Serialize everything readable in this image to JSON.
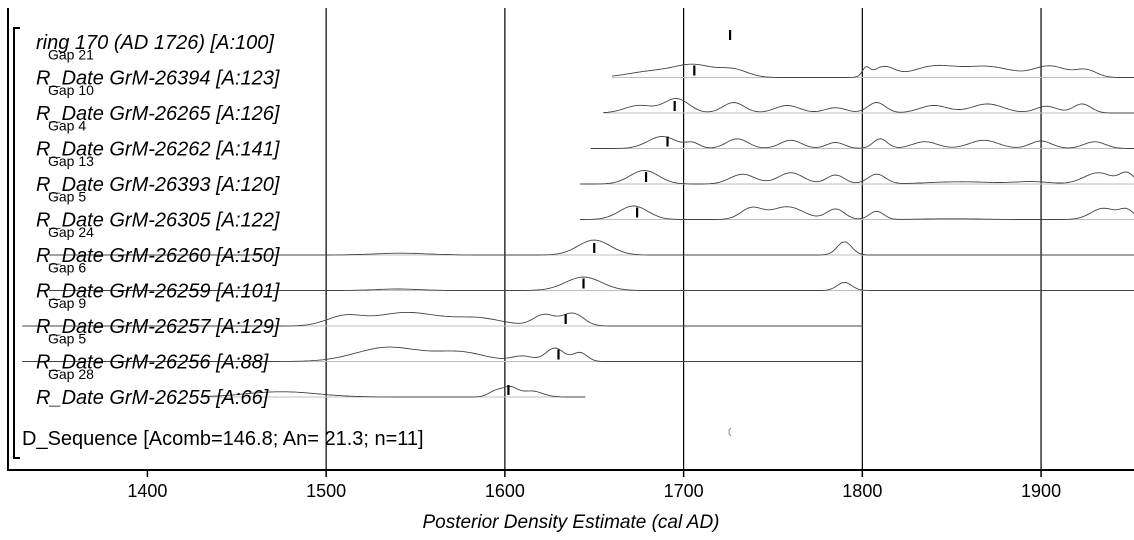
{
  "chart_data": {
    "type": "line",
    "xlabel": "Posterior Density Estimate (cal AD)",
    "ylabel": "",
    "xlim": [
      1322,
      1952
    ],
    "x_ticks": [
      1400,
      1500,
      1600,
      1700,
      1800,
      1900
    ],
    "x_tick_labels": [
      "1400",
      "1500",
      "1600",
      "1700",
      "1800",
      "1900"
    ],
    "grid_x": [
      1500,
      1600,
      1700,
      1800,
      1900
    ],
    "rows": [
      {
        "label": "ring 170 (AD 1726) [A:100]",
        "italic": true,
        "gap": "",
        "median": 1726,
        "baseline": null,
        "peaks": []
      },
      {
        "label": "R_Date GrM-26394 [A:123]",
        "italic": true,
        "gap": "Gap 21",
        "median": 1706,
        "baseline": [
          1660,
          1952
        ],
        "peaks": [
          [
            1682,
            13,
            0.4
          ],
          [
            1706,
            11,
            0.8
          ],
          [
            1728,
            8,
            0.5
          ],
          [
            1802,
            2,
            0.55
          ],
          [
            1812,
            6,
            0.7
          ],
          [
            1840,
            12,
            0.72
          ],
          [
            1870,
            14,
            0.72
          ],
          [
            1905,
            9,
            0.75
          ],
          [
            1925,
            6,
            0.5
          ]
        ]
      },
      {
        "label": "R_Date GrM-26265 [A:126]",
        "italic": true,
        "gap": "Gap 10",
        "median": 1695,
        "baseline": [
          1655,
          1952
        ],
        "peaks": [
          [
            1675,
            8,
            0.5
          ],
          [
            1696,
            7,
            0.95
          ],
          [
            1728,
            6,
            0.7
          ],
          [
            1758,
            7,
            0.5
          ],
          [
            1785,
            6,
            0.35
          ],
          [
            1808,
            5,
            0.7
          ],
          [
            1840,
            8,
            0.5
          ],
          [
            1870,
            9,
            0.6
          ],
          [
            1903,
            6,
            0.45
          ],
          [
            1923,
            5,
            0.6
          ]
        ]
      },
      {
        "label": "R_Date GrM-26262 [A:141]",
        "italic": true,
        "gap": "Gap 4",
        "median": 1691,
        "baseline": [
          1648,
          1952
        ],
        "peaks": [
          [
            1688,
            8,
            0.8
          ],
          [
            1705,
            4,
            0.35
          ],
          [
            1730,
            6,
            0.65
          ],
          [
            1760,
            6,
            0.55
          ],
          [
            1785,
            5,
            0.4
          ],
          [
            1810,
            4,
            0.65
          ],
          [
            1835,
            7,
            0.45
          ],
          [
            1868,
            8,
            0.55
          ],
          [
            1900,
            6,
            0.5
          ],
          [
            1930,
            6,
            0.45
          ]
        ]
      },
      {
        "label": "R_Date GrM-26393 [A:120]",
        "italic": true,
        "gap": "Gap 13",
        "median": 1679,
        "baseline": [
          1642,
          1952
        ],
        "peaks": [
          [
            1678,
            8,
            0.9
          ],
          [
            1733,
            7,
            0.65
          ],
          [
            1760,
            7,
            0.75
          ],
          [
            1785,
            5,
            0.6
          ],
          [
            1808,
            5,
            0.65
          ],
          [
            1855,
            18,
            0.15
          ],
          [
            1895,
            10,
            0.15
          ],
          [
            1932,
            8,
            0.75
          ],
          [
            1948,
            4,
            0.7
          ]
        ]
      },
      {
        "label": "R_Date GrM-26305 [A:122]",
        "italic": true,
        "gap": "Gap 5",
        "median": 1674,
        "baseline": [
          1642,
          1952
        ],
        "peaks": [
          [
            1672,
            8,
            0.9
          ],
          [
            1738,
            6,
            0.75
          ],
          [
            1758,
            9,
            0.85
          ],
          [
            1785,
            5,
            0.7
          ],
          [
            1808,
            4,
            0.55
          ],
          [
            1850,
            15,
            0.05
          ],
          [
            1935,
            7,
            0.75
          ],
          [
            1948,
            4,
            0.6
          ]
        ]
      },
      {
        "label": "R_Date GrM-26260 [A:150]",
        "italic": true,
        "gap": "Gap 24",
        "median": 1650,
        "baseline": [
          1345,
          1952
        ],
        "peaks": [
          [
            1542,
            15,
            0.12
          ],
          [
            1650,
            9,
            1.0
          ],
          [
            1790,
            4,
            0.9
          ]
        ]
      },
      {
        "label": "R_Date GrM-26259 [A:101]",
        "italic": true,
        "gap": "Gap 6",
        "median": 1644,
        "baseline": [
          1345,
          1952
        ],
        "peaks": [
          [
            1540,
            12,
            0.1
          ],
          [
            1644,
            10,
            0.9
          ],
          [
            1790,
            4,
            0.55
          ]
        ]
      },
      {
        "label": "R_Date GrM-26257 [A:129]",
        "italic": true,
        "gap": "Gap 9",
        "median": 1634,
        "baseline": [
          1330,
          1800
        ],
        "peaks": [
          [
            1510,
            10,
            0.6
          ],
          [
            1545,
            18,
            0.9
          ],
          [
            1585,
            14,
            0.5
          ],
          [
            1622,
            6,
            0.75
          ],
          [
            1638,
            6,
            0.85
          ]
        ]
      },
      {
        "label": "R_Date GrM-26256 [A:88]",
        "italic": true,
        "gap": "Gap 5",
        "median": 1630,
        "baseline": [
          1330,
          1800
        ],
        "peaks": [
          [
            1535,
            18,
            0.95
          ],
          [
            1575,
            14,
            0.6
          ],
          [
            1610,
            6,
            0.35
          ],
          [
            1628,
            5,
            0.9
          ],
          [
            1642,
            4,
            0.6
          ]
        ]
      },
      {
        "label": "R_Date GrM-26255 [A:66]",
        "italic": true,
        "gap": "Gap 28",
        "median": 1602,
        "baseline": [
          1430,
          1645
        ],
        "peaks": [
          [
            1475,
            20,
            0.35
          ],
          [
            1595,
            4,
            0.4
          ],
          [
            1603,
            4,
            0.6
          ],
          [
            1615,
            6,
            0.4
          ]
        ]
      },
      {
        "label": "D_Sequence [Acomb=146.8; An= 21.3; n=11]",
        "italic": false,
        "gap": "",
        "median": 1726,
        "baseline": null,
        "peaks": []
      }
    ]
  }
}
